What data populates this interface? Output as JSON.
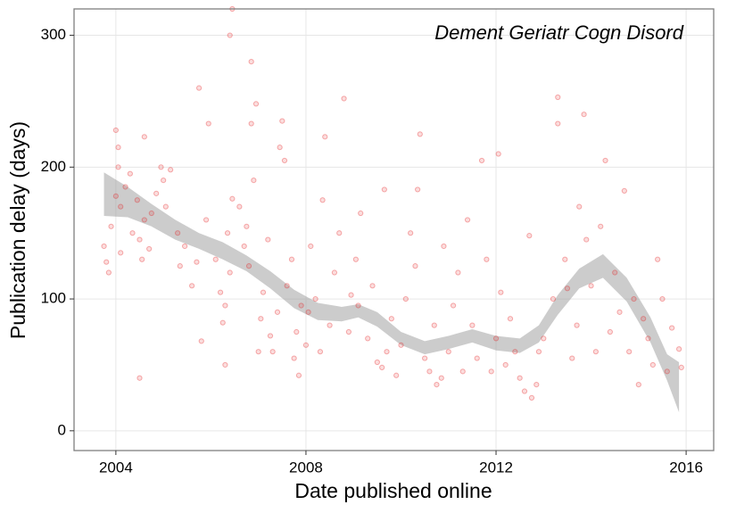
{
  "chart_data": {
    "type": "scatter",
    "annotation": "Dement Geriatr Cogn Disord",
    "xlabel": "Date published online",
    "ylabel": "Publication delay (days)",
    "color": "#e41a1c",
    "xlim": [
      2003.12,
      2016.58
    ],
    "xticks": [
      2004,
      2008,
      2012,
      2016
    ],
    "ylim": [
      -15,
      320
    ],
    "yticks": [
      0,
      100,
      200,
      300
    ],
    "grid": true,
    "x": [
      2003.75,
      2003.8,
      2003.85,
      2003.9,
      2004.0,
      2004.05,
      2004.0,
      2004.05,
      2004.1,
      2004.1,
      2004.2,
      2004.3,
      2004.35,
      2004.45,
      2004.5,
      2004.55,
      2004.6,
      2004.6,
      2004.7,
      2004.75,
      2004.85,
      2004.95,
      2005.0,
      2005.05,
      2005.15,
      2004.5,
      2005.3,
      2005.35,
      2005.45,
      2005.6,
      2005.7,
      2005.8,
      2005.9,
      2005.95,
      2005.75,
      2006.1,
      2006.2,
      2006.25,
      2006.3,
      2006.4,
      2006.35,
      2006.45,
      2006.3,
      2006.6,
      2006.45,
      2006.4,
      2006.7,
      2006.75,
      2006.8,
      2006.85,
      2006.85,
      2006.9,
      2006.95,
      2007.0,
      2007.05,
      2007.1,
      2007.2,
      2007.25,
      2007.3,
      2007.4,
      2007.45,
      2007.55,
      2007.5,
      2007.6,
      2007.7,
      2007.75,
      2007.8,
      2007.85,
      2007.9,
      2008.0,
      2008.05,
      2008.1,
      2008.2,
      2008.3,
      2008.35,
      2008.4,
      2008.5,
      2008.6,
      2008.7,
      2008.8,
      2008.9,
      2008.95,
      2009.05,
      2009.1,
      2009.15,
      2009.3,
      2009.4,
      2009.5,
      2009.6,
      2009.65,
      2009.7,
      2009.8,
      2009.9,
      2010.0,
      2010.1,
      2010.2,
      2010.3,
      2010.35,
      2010.4,
      2010.5,
      2010.6,
      2010.7,
      2010.75,
      2010.85,
      2010.9,
      2011.0,
      2011.1,
      2011.2,
      2011.3,
      2011.4,
      2011.5,
      2011.6,
      2011.7,
      2011.8,
      2011.9,
      2012.0,
      2012.05,
      2012.1,
      2012.2,
      2012.3,
      2012.4,
      2012.5,
      2012.6,
      2012.7,
      2012.75,
      2012.85,
      2012.9,
      2013.0,
      2013.2,
      2013.3,
      2013.3,
      2013.45,
      2013.5,
      2013.6,
      2013.7,
      2013.75,
      2013.85,
      2013.9,
      2014.0,
      2014.1,
      2014.2,
      2014.3,
      2014.4,
      2014.5,
      2014.6,
      2014.7,
      2014.8,
      2014.9,
      2015.0,
      2015.1,
      2015.2,
      2015.3,
      2015.4,
      2015.5,
      2015.6,
      2015.7,
      2015.85,
      2015.9
    ],
    "values": [
      140,
      128,
      120,
      155,
      178,
      200,
      228,
      215,
      170,
      135,
      185,
      195,
      150,
      175,
      145,
      130,
      160,
      223,
      138,
      165,
      180,
      200,
      190,
      170,
      198,
      40,
      150,
      125,
      140,
      110,
      128,
      68,
      160,
      233,
      260,
      130,
      105,
      82,
      95,
      120,
      150,
      176,
      50,
      170,
      320,
      300,
      140,
      155,
      125,
      280,
      233,
      190,
      248,
      60,
      85,
      105,
      145,
      72,
      60,
      90,
      215,
      205,
      235,
      110,
      130,
      55,
      75,
      42,
      95,
      65,
      90,
      140,
      100,
      60,
      175,
      223,
      80,
      120,
      150,
      252,
      75,
      103,
      130,
      95,
      165,
      70,
      110,
      52,
      48,
      183,
      60,
      85,
      42,
      65,
      100,
      150,
      125,
      183,
      225,
      55,
      45,
      80,
      35,
      40,
      140,
      60,
      95,
      120,
      45,
      160,
      80,
      55,
      205,
      130,
      45,
      70,
      210,
      105,
      50,
      85,
      60,
      40,
      30,
      148,
      25,
      35,
      60,
      70,
      100,
      253,
      233,
      130,
      108,
      55,
      80,
      170,
      240,
      145,
      110,
      60,
      155,
      205,
      75,
      120,
      90,
      182,
      60,
      100,
      35,
      85,
      70,
      50,
      130,
      100,
      45,
      78,
      62,
      48
    ],
    "ribbon": {
      "color": "#999999",
      "x": [
        2003.75,
        2004.25,
        2004.75,
        2005.25,
        2005.75,
        2006.25,
        2006.75,
        2007.25,
        2007.75,
        2008.25,
        2008.75,
        2009.1,
        2009.5,
        2010,
        2010.5,
        2011,
        2011.5,
        2012,
        2012.5,
        2012.9,
        2013.3,
        2013.75,
        2014.25,
        2014.75,
        2015.25,
        2015.6,
        2015.85
      ],
      "lower": [
        163,
        162,
        155,
        145,
        138,
        130,
        121,
        108,
        93,
        84,
        83,
        86,
        79,
        65,
        58,
        62,
        67,
        61,
        59,
        67,
        88,
        108,
        116,
        98,
        67,
        38,
        14
      ],
      "upper": [
        196,
        185,
        172,
        160,
        150,
        143,
        133,
        121,
        107,
        97,
        94,
        96,
        90,
        75,
        68,
        72,
        77,
        72,
        70,
        80,
        103,
        123,
        134,
        116,
        86,
        58,
        52
      ]
    }
  }
}
